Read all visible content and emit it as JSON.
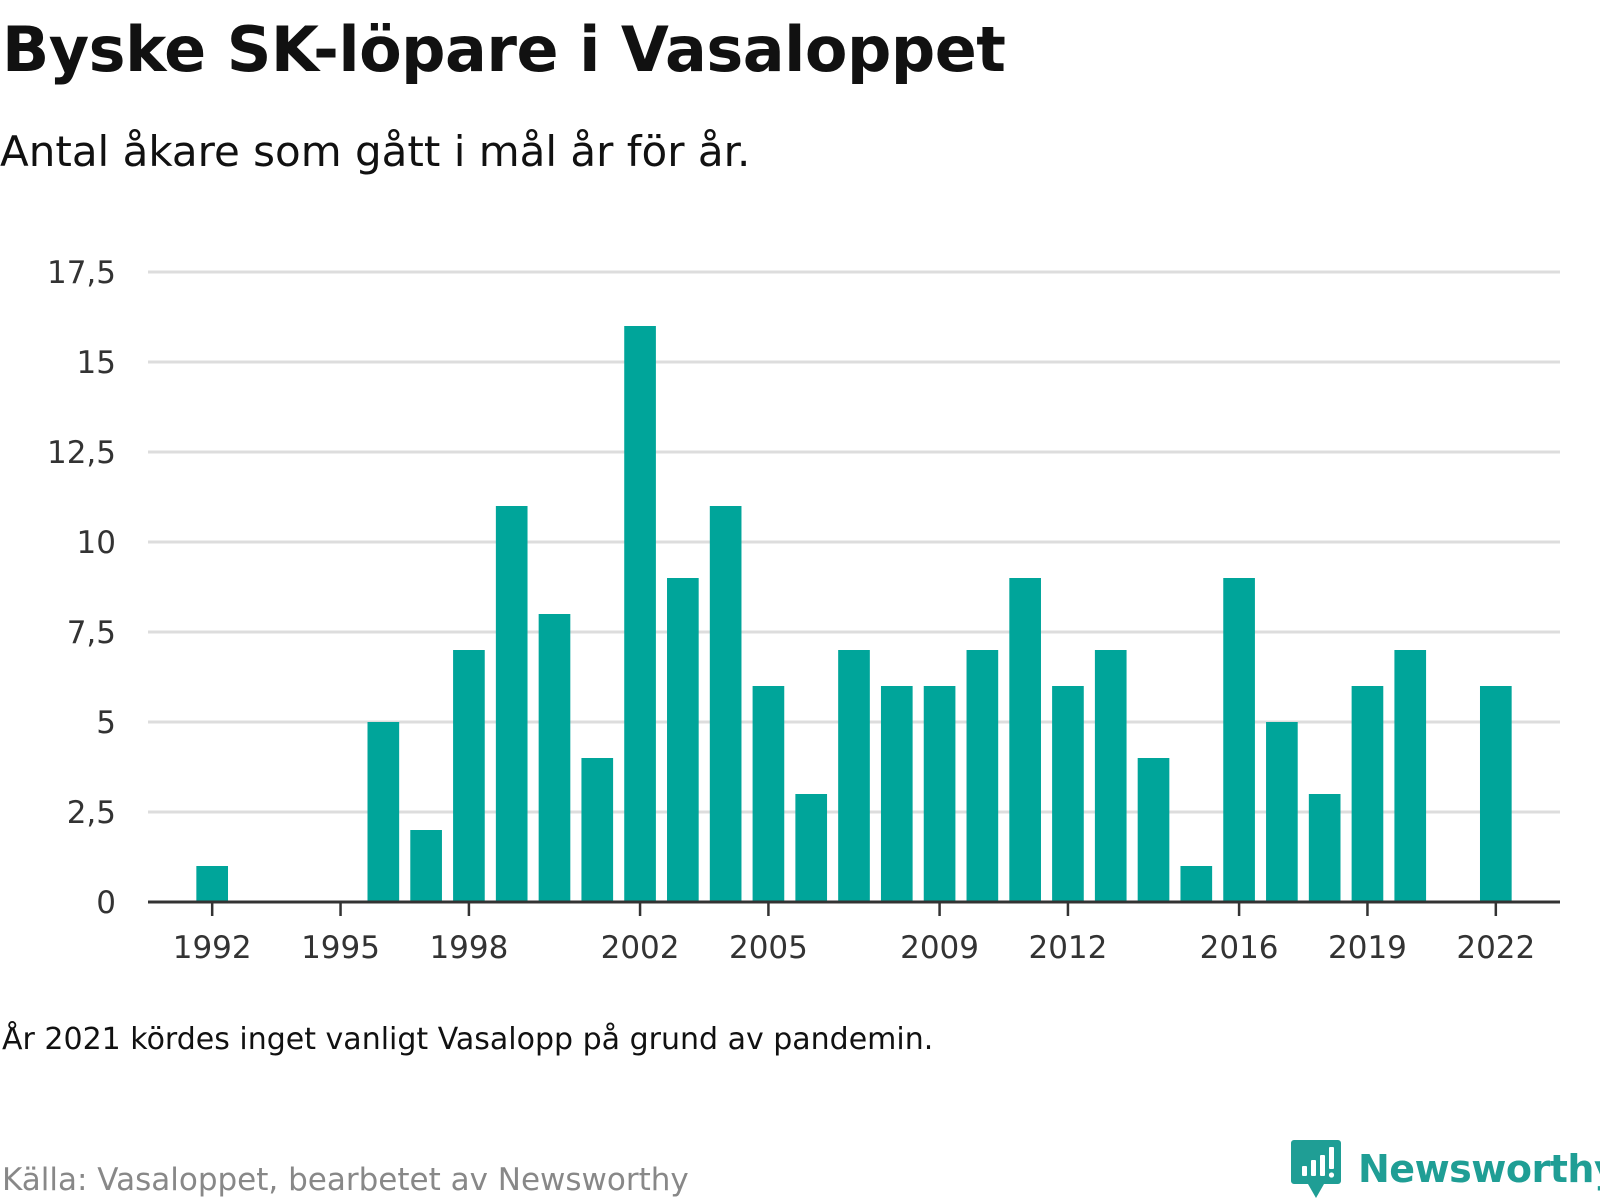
{
  "title": "Byske SK-löpare i Vasaloppet",
  "subtitle": "Antal åkare som gått i mål år för år.",
  "note": "År 2021 kördes inget vanligt Vasalopp på grund av pandemin.",
  "source": "Källa: Vasaloppet, bearbetet av Newsworthy",
  "logo": {
    "text": "Newsworthy",
    "icon": "newsworthy-logo-icon"
  },
  "colors": {
    "bar": "#00A59A",
    "grid": "#DDDDDD",
    "axis": "#333333",
    "title": "#111111",
    "source": "#888888",
    "logo": "#1F9E95"
  },
  "chart_data": {
    "type": "bar",
    "categories": [
      1991,
      1992,
      1993,
      1994,
      1995,
      1996,
      1997,
      1998,
      1999,
      2000,
      2001,
      2002,
      2003,
      2004,
      2005,
      2006,
      2007,
      2008,
      2009,
      2010,
      2011,
      2012,
      2013,
      2014,
      2015,
      2016,
      2017,
      2018,
      2019,
      2020,
      2021,
      2022,
      2023
    ],
    "values": [
      0,
      1,
      0,
      0,
      0,
      5,
      2,
      7,
      11,
      8,
      4,
      16,
      9,
      11,
      6,
      3,
      7,
      6,
      6,
      7,
      9,
      6,
      7,
      4,
      1,
      9,
      5,
      3,
      6,
      7,
      0,
      6,
      0
    ],
    "ylim": [
      0,
      17.5
    ],
    "yticks": [
      0,
      2.5,
      5,
      7.5,
      10,
      12.5,
      15,
      17.5
    ],
    "ytick_labels": [
      "0",
      "2,5",
      "5",
      "7,5",
      "10",
      "12,5",
      "15",
      "17,5"
    ],
    "xticks": [
      1992,
      1995,
      1998,
      2002,
      2005,
      2009,
      2012,
      2016,
      2019,
      2022
    ],
    "xlabel": "",
    "ylabel": "",
    "grid": true,
    "legend": false
  }
}
